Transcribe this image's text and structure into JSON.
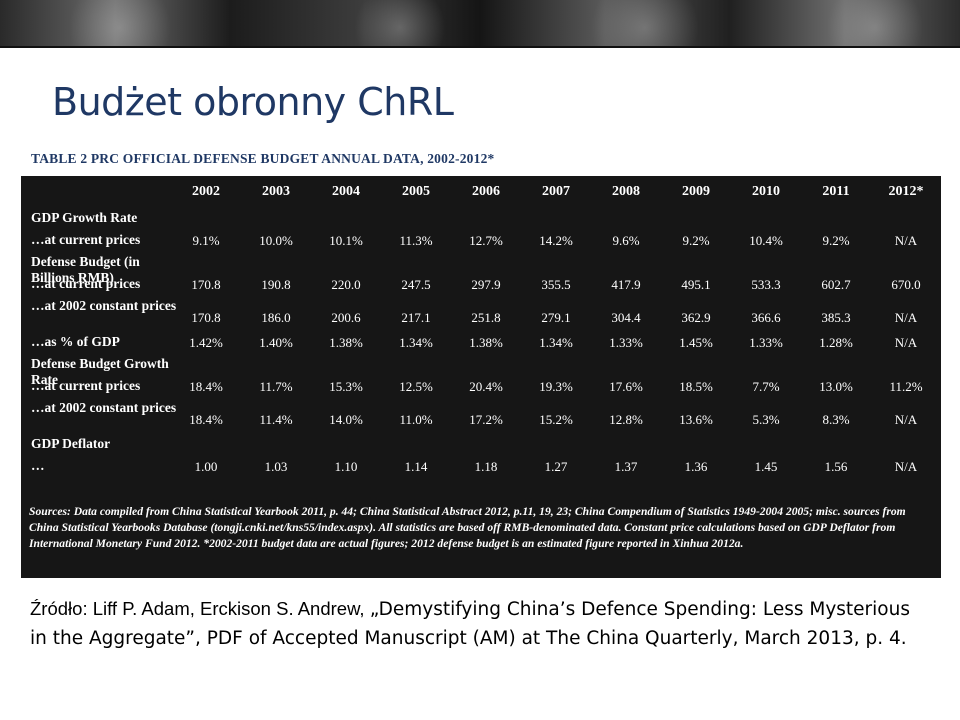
{
  "slide": {
    "title": "Budżet obronny ChRL",
    "source_note": {
      "lead": "Źródło: Liff P. Adam, Erckison S. Andrew, ",
      "rest": "„Demystifying China’s Defence Spending: Less Mysterious in the Aggregate”, PDF of Accepted Manuscript (AM) at The China Quarterly, March 2013, p. 4."
    }
  },
  "table": {
    "caption": "TABLE 2 PRC OFFICIAL DEFENSE BUDGET ANNUAL DATA, 2002-2012*",
    "years": [
      "2002",
      "2003",
      "2004",
      "2005",
      "2006",
      "2007",
      "2008",
      "2009",
      "2010",
      "2011",
      "2012*"
    ],
    "rows": [
      {
        "label": "GDP Growth Rate",
        "type": "section",
        "values": []
      },
      {
        "label": "…at current prices",
        "type": "data",
        "values": [
          "9.1%",
          "10.0%",
          "10.1%",
          "11.3%",
          "12.7%",
          "14.2%",
          "9.6%",
          "9.2%",
          "10.4%",
          "9.2%",
          "N/A"
        ]
      },
      {
        "label": "Defense Budget (in Billions RMB)",
        "type": "section",
        "values": []
      },
      {
        "label": "…at current prices",
        "type": "data",
        "values": [
          "170.8",
          "190.8",
          "220.0",
          "247.5",
          "297.9",
          "355.5",
          "417.9",
          "495.1",
          "533.3",
          "602.7",
          "670.0"
        ]
      },
      {
        "label": "…at 2002 constant prices",
        "type": "tall",
        "values": [
          "170.8",
          "186.0",
          "200.6",
          "217.1",
          "251.8",
          "279.1",
          "304.4",
          "362.9",
          "366.6",
          "385.3",
          "N/A"
        ]
      },
      {
        "label": "…as % of GDP",
        "type": "data",
        "values": [
          "1.42%",
          "1.40%",
          "1.38%",
          "1.34%",
          "1.38%",
          "1.34%",
          "1.33%",
          "1.45%",
          "1.33%",
          "1.28%",
          "N/A"
        ]
      },
      {
        "label": "Defense Budget Growth Rate",
        "type": "section",
        "values": []
      },
      {
        "label": "…at current prices",
        "type": "data",
        "values": [
          "18.4%",
          "11.7%",
          "15.3%",
          "12.5%",
          "20.4%",
          "19.3%",
          "17.6%",
          "18.5%",
          "7.7%",
          "13.0%",
          "11.2%"
        ]
      },
      {
        "label": "…at 2002 constant prices",
        "type": "tall",
        "values": [
          "18.4%",
          "11.4%",
          "14.0%",
          "11.0%",
          "17.2%",
          "15.2%",
          "12.8%",
          "13.6%",
          "5.3%",
          "8.3%",
          "N/A"
        ]
      },
      {
        "label": "GDP Deflator",
        "type": "section",
        "values": []
      },
      {
        "label": "…",
        "type": "data",
        "values": [
          "1.00",
          "1.03",
          "1.10",
          "1.14",
          "1.18",
          "1.27",
          "1.37",
          "1.36",
          "1.45",
          "1.56",
          "N/A"
        ]
      }
    ],
    "sources": "Sources: Data compiled from China Statistical Yearbook 2011, p. 44; China Statistical Abstract 2012, p.11, 19, 23; China Compendium of Statistics 1949-2004 2005; misc. sources from China Statistical Yearbooks Database (tongji.cnki.net/kns55/index.aspx). All statistics are based off RMB-denominated data. Constant price calculations based on GDP Deflator from International Monetary Fund 2012. *2002-2011 budget data are actual figures; 2012 defense budget is an estimated figure reported in Xinhua 2012a."
  }
}
